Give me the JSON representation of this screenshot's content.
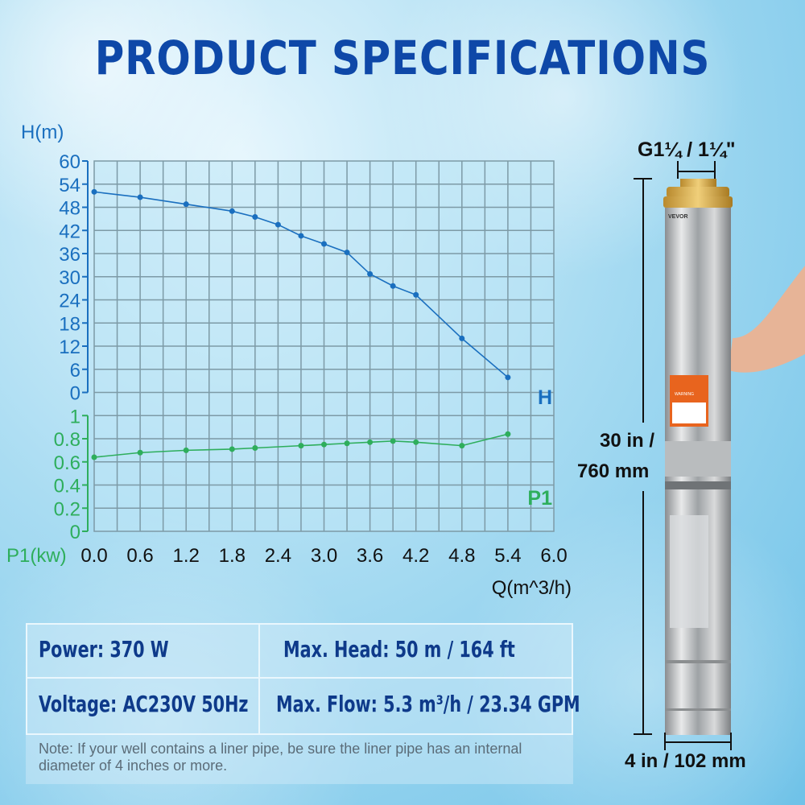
{
  "title": "PRODUCT SPECIFICATIONS",
  "chart_data": {
    "type": "line",
    "xlabel": "Q(m^3/h)",
    "x_ticks": [
      "0.0",
      "0.6",
      "1.2",
      "1.8",
      "2.4",
      "3.0",
      "3.6",
      "4.2",
      "4.8",
      "5.4",
      "6.0"
    ],
    "xlim": [
      0,
      6.0
    ],
    "grid": true,
    "axes": [
      {
        "label": "H(m)",
        "ylim": [
          0,
          60
        ],
        "ticks": [
          "60",
          "54",
          "48",
          "42",
          "36",
          "30",
          "24",
          "18",
          "12",
          "6",
          "0"
        ],
        "color": "#1a6fbf"
      },
      {
        "label": "P1(kw)",
        "ylim": [
          0,
          1
        ],
        "ticks": [
          "1",
          "0.8",
          "0.6",
          "0.4",
          "0.2",
          "0"
        ],
        "color": "#2eae5c"
      }
    ],
    "series": [
      {
        "name": "H",
        "axis": 0,
        "color": "#1a6fbf",
        "x": [
          0.0,
          0.6,
          1.2,
          1.8,
          2.1,
          2.4,
          2.7,
          3.0,
          3.3,
          3.6,
          3.9,
          4.2,
          4.8,
          5.4
        ],
        "y": [
          52,
          50.6,
          48.8,
          47,
          45.5,
          43.5,
          40.6,
          38.5,
          36.3,
          30.7,
          27.6,
          25.3,
          14,
          3.9
        ]
      },
      {
        "name": "P1",
        "axis": 1,
        "color": "#2eae5c",
        "x": [
          0.0,
          0.6,
          1.2,
          1.8,
          2.1,
          2.7,
          3.0,
          3.3,
          3.6,
          3.9,
          4.2,
          4.8,
          5.4
        ],
        "y": [
          0.64,
          0.68,
          0.7,
          0.71,
          0.72,
          0.74,
          0.75,
          0.76,
          0.77,
          0.78,
          0.77,
          0.74,
          0.84
        ]
      }
    ]
  },
  "specs": {
    "power": "Power: 370 W",
    "max_head": "Max. Head: 50 m / 164 ft",
    "voltage": "Voltage: AC230V 50Hz",
    "max_flow": "Max. Flow: 5.3 m³/h / 23.34 GPM",
    "note": "Note: If your well contains a liner pipe, be sure the liner pipe has an internal diameter of 4 inches or more."
  },
  "product": {
    "outlet": "G1¼ / 1¼\"",
    "length_in": "30 in /",
    "length_mm": "760 mm",
    "diameter": "4 in / 102 mm",
    "brand": "VEVOR",
    "warning": "WARNING"
  }
}
